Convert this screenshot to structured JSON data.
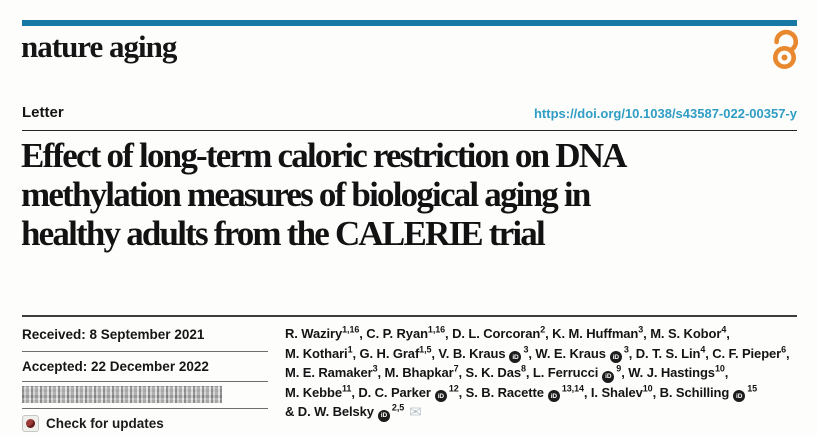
{
  "colors": {
    "accent_bar": "#1878a5",
    "doi_link": "#2f9dc4",
    "open_access_orange": "#e8882f",
    "text": "#161616",
    "crossmark_red": "#9c3a38"
  },
  "masthead": {
    "journal_name": "nature aging"
  },
  "header": {
    "article_type": "Letter",
    "doi": "https://doi.org/10.1038/s43587-022-00357-y"
  },
  "title_lines": [
    "Effect of long-term caloric restriction on DNA",
    "methylation measures of biological aging in",
    "healthy adults from the CALERIE trial"
  ],
  "meta": {
    "received": "Received: 8 September 2021",
    "accepted": "Accepted: 22 December 2022",
    "check_updates": "Check for updates"
  },
  "icons": {
    "open_access": "open-access-lock",
    "check_updates": "crossmark",
    "orcid_text": "iD",
    "mail_glyph": "✉"
  },
  "authors": {
    "lines": [
      [
        {
          "t": "R. Waziry"
        },
        {
          "s": "1,16"
        },
        {
          "t": ", C. P. Ryan"
        },
        {
          "s": "1,16"
        },
        {
          "t": ", D. L. Corcoran"
        },
        {
          "s": "2"
        },
        {
          "t": ", K. M. Huffman"
        },
        {
          "s": "3"
        },
        {
          "t": ", M. S. Kobor"
        },
        {
          "s": "4"
        },
        {
          "t": ","
        }
      ],
      [
        {
          "t": "M. Kothari"
        },
        {
          "s": "1"
        },
        {
          "t": ", G. H. Graf"
        },
        {
          "s": "1,5"
        },
        {
          "t": ", V. B. Kraus"
        },
        {
          "o": true
        },
        {
          "s": "3"
        },
        {
          "t": ", W. E. Kraus"
        },
        {
          "o": true
        },
        {
          "s": "3"
        },
        {
          "t": ", D. T. S. Lin"
        },
        {
          "s": "4"
        },
        {
          "t": ", C. F. Pieper"
        },
        {
          "s": "6"
        },
        {
          "t": ","
        }
      ],
      [
        {
          "t": "M. E. Ramaker"
        },
        {
          "s": "3"
        },
        {
          "t": ", M. Bhapkar"
        },
        {
          "s": "7"
        },
        {
          "t": ", S. K. Das"
        },
        {
          "s": "8"
        },
        {
          "t": ", L. Ferrucci"
        },
        {
          "o": true
        },
        {
          "s": "9"
        },
        {
          "t": ", W. J. Hastings"
        },
        {
          "s": "10"
        },
        {
          "t": ","
        }
      ],
      [
        {
          "t": "M. Kebbe"
        },
        {
          "s": "11"
        },
        {
          "t": ", D. C. Parker"
        },
        {
          "o": true
        },
        {
          "s": "12"
        },
        {
          "t": ", S. B. Racette"
        },
        {
          "o": true
        },
        {
          "s": "13,14"
        },
        {
          "t": ", I. Shalev"
        },
        {
          "s": "10"
        },
        {
          "t": ", B. Schilling"
        },
        {
          "o": true
        },
        {
          "s": "15"
        }
      ],
      [
        {
          "t": "& D. W. Belsky"
        },
        {
          "o": true
        },
        {
          "s": "2,5"
        },
        {
          "m": true
        }
      ]
    ]
  }
}
